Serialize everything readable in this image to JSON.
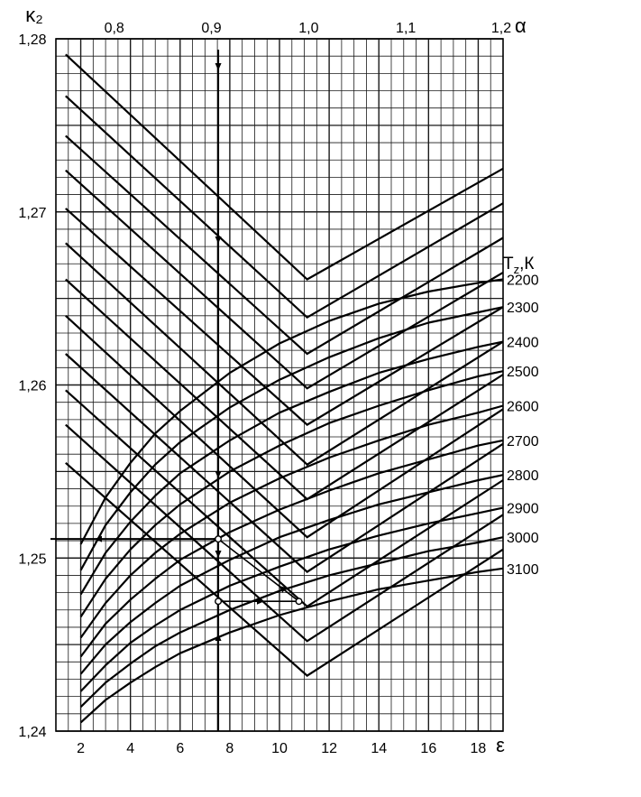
{
  "chart_data": {
    "type": "line",
    "axes": {
      "y": {
        "label": "κ₂",
        "range": [
          1.24,
          1.28
        ],
        "ticks": [
          "1,24",
          "1,25",
          "1,26",
          "1,27",
          "1,28"
        ],
        "tick_values": [
          1.24,
          1.25,
          1.26,
          1.27,
          1.28
        ]
      },
      "x_bottom": {
        "label": "ε",
        "range": [
          1,
          19
        ],
        "ticks": [
          "2",
          "4",
          "6",
          "8",
          "10",
          "12",
          "14",
          "16",
          "18"
        ],
        "tick_values": [
          2,
          4,
          6,
          8,
          10,
          12,
          14,
          16,
          18
        ]
      },
      "x_top": {
        "label": "α",
        "range": [
          0.74,
          1.2
        ],
        "ticks": [
          "0,8",
          "0,9",
          "1,0",
          "1,1",
          "1,2"
        ],
        "tick_values": [
          0.8,
          0.9,
          1.0,
          1.1,
          1.2
        ]
      }
    },
    "grid": true,
    "legend_title": "T",
    "legend_title_sub": "z",
    "legend_title_suffix": ",К",
    "alpha_series": [
      {
        "name": "2200",
        "points": [
          [
            0.75,
            1.2791
          ],
          [
            0.9985,
            1.2661
          ],
          [
            1.2,
            1.2725
          ]
        ]
      },
      {
        "name": "2300",
        "points": [
          [
            0.75,
            1.2767
          ],
          [
            0.9985,
            1.2639
          ],
          [
            1.2,
            1.2705
          ]
        ]
      },
      {
        "name": "2400",
        "points": [
          [
            0.75,
            1.2744
          ],
          [
            0.9985,
            1.2618
          ],
          [
            1.2,
            1.2685
          ]
        ]
      },
      {
        "name": "2500",
        "points": [
          [
            0.75,
            1.2724
          ],
          [
            0.9985,
            1.2598
          ],
          [
            1.2,
            1.2665
          ]
        ]
      },
      {
        "name": "2600",
        "points": [
          [
            0.75,
            1.2702
          ],
          [
            0.9985,
            1.2577
          ],
          [
            1.2,
            1.2645
          ]
        ]
      },
      {
        "name": "2700",
        "points": [
          [
            0.75,
            1.2682
          ],
          [
            0.9985,
            1.2554
          ],
          [
            1.2,
            1.2625
          ]
        ]
      },
      {
        "name": "2800",
        "points": [
          [
            0.75,
            1.2661
          ],
          [
            0.9985,
            1.2534
          ],
          [
            1.2,
            1.2606
          ]
        ]
      },
      {
        "name": "2900",
        "points": [
          [
            0.75,
            1.264
          ],
          [
            0.9985,
            1.2512
          ],
          [
            1.2,
            1.2586
          ]
        ]
      },
      {
        "name": "3000",
        "points": [
          [
            0.75,
            1.2618
          ],
          [
            0.9985,
            1.2492
          ],
          [
            1.2,
            1.2566
          ]
        ]
      },
      {
        "name": "3100",
        "points": [
          [
            0.75,
            1.2597
          ],
          [
            0.9985,
            1.2472
          ],
          [
            1.2,
            1.2545
          ]
        ]
      },
      {
        "name": "",
        "points": [
          [
            0.75,
            1.2577
          ],
          [
            0.9985,
            1.2452
          ],
          [
            1.2,
            1.2525
          ]
        ]
      },
      {
        "name": "",
        "points": [
          [
            0.75,
            1.2555
          ],
          [
            0.9985,
            1.2432
          ],
          [
            1.2,
            1.2505
          ]
        ]
      }
    ],
    "epsilon_series": [
      {
        "name": "2200",
        "points": [
          [
            2,
            1.2508
          ],
          [
            3,
            1.2535
          ],
          [
            4,
            1.2555
          ],
          [
            5,
            1.2572
          ],
          [
            6,
            1.2585
          ],
          [
            8,
            1.2607
          ],
          [
            10,
            1.2624
          ],
          [
            12,
            1.2637
          ],
          [
            14,
            1.2647
          ],
          [
            16,
            1.2654
          ],
          [
            18,
            1.2659
          ],
          [
            19,
            1.2661
          ]
        ]
      },
      {
        "name": "2300",
        "points": [
          [
            2,
            1.2493
          ],
          [
            3,
            1.2519
          ],
          [
            4,
            1.2538
          ],
          [
            5,
            1.2554
          ],
          [
            6,
            1.2567
          ],
          [
            8,
            1.2587
          ],
          [
            10,
            1.2603
          ],
          [
            12,
            1.2616
          ],
          [
            14,
            1.2627
          ],
          [
            16,
            1.2636
          ],
          [
            18,
            1.2642
          ],
          [
            19,
            1.2645
          ]
        ]
      },
      {
        "name": "2400",
        "points": [
          [
            2,
            1.2479
          ],
          [
            3,
            1.2503
          ],
          [
            4,
            1.2521
          ],
          [
            5,
            1.2536
          ],
          [
            6,
            1.2549
          ],
          [
            8,
            1.2568
          ],
          [
            10,
            1.2584
          ],
          [
            12,
            1.2596
          ],
          [
            14,
            1.2607
          ],
          [
            16,
            1.2615
          ],
          [
            18,
            1.2622
          ],
          [
            19,
            1.2625
          ]
        ]
      },
      {
        "name": "2500",
        "points": [
          [
            2,
            1.2466
          ],
          [
            3,
            1.2488
          ],
          [
            4,
            1.2505
          ],
          [
            5,
            1.2519
          ],
          [
            6,
            1.2531
          ],
          [
            8,
            1.255
          ],
          [
            10,
            1.2565
          ],
          [
            12,
            1.2578
          ],
          [
            14,
            1.2588
          ],
          [
            16,
            1.2597
          ],
          [
            18,
            1.2605
          ],
          [
            19,
            1.2608
          ]
        ]
      },
      {
        "name": "2600",
        "points": [
          [
            2,
            1.2454
          ],
          [
            3,
            1.2474
          ],
          [
            4,
            1.249
          ],
          [
            5,
            1.2503
          ],
          [
            6,
            1.2514
          ],
          [
            8,
            1.2532
          ],
          [
            10,
            1.2546
          ],
          [
            12,
            1.2558
          ],
          [
            14,
            1.2568
          ],
          [
            16,
            1.2577
          ],
          [
            18,
            1.2584
          ],
          [
            19,
            1.2588
          ]
        ]
      },
      {
        "name": "2700",
        "points": [
          [
            2,
            1.2443
          ],
          [
            3,
            1.2462
          ],
          [
            4,
            1.2476
          ],
          [
            5,
            1.2488
          ],
          [
            6,
            1.2499
          ],
          [
            8,
            1.2515
          ],
          [
            10,
            1.2528
          ],
          [
            12,
            1.2539
          ],
          [
            14,
            1.2549
          ],
          [
            16,
            1.2557
          ],
          [
            18,
            1.2565
          ],
          [
            19,
            1.2568
          ]
        ]
      },
      {
        "name": "2800",
        "points": [
          [
            2,
            1.2433
          ],
          [
            3,
            1.245
          ],
          [
            4,
            1.2463
          ],
          [
            5,
            1.2474
          ],
          [
            6,
            1.2484
          ],
          [
            8,
            1.2499
          ],
          [
            10,
            1.2512
          ],
          [
            12,
            1.2522
          ],
          [
            14,
            1.2531
          ],
          [
            16,
            1.2538
          ],
          [
            18,
            1.2545
          ],
          [
            19,
            1.2548
          ]
        ]
      },
      {
        "name": "2900",
        "points": [
          [
            2,
            1.2423
          ],
          [
            3,
            1.2438
          ],
          [
            4,
            1.2451
          ],
          [
            5,
            1.2461
          ],
          [
            6,
            1.247
          ],
          [
            8,
            1.2484
          ],
          [
            10,
            1.2495
          ],
          [
            12,
            1.2505
          ],
          [
            14,
            1.2513
          ],
          [
            16,
            1.252
          ],
          [
            18,
            1.2526
          ],
          [
            19,
            1.2529
          ]
        ]
      },
      {
        "name": "3000",
        "points": [
          [
            2,
            1.2414
          ],
          [
            3,
            1.2428
          ],
          [
            4,
            1.2439
          ],
          [
            5,
            1.2449
          ],
          [
            6,
            1.2457
          ],
          [
            8,
            1.247
          ],
          [
            10,
            1.2481
          ],
          [
            12,
            1.249
          ],
          [
            14,
            1.2497
          ],
          [
            16,
            1.2504
          ],
          [
            18,
            1.2509
          ],
          [
            19,
            1.2512
          ]
        ]
      },
      {
        "name": "3100",
        "points": [
          [
            2,
            1.2405
          ],
          [
            3,
            1.2418
          ],
          [
            4,
            1.2428
          ],
          [
            5,
            1.2437
          ],
          [
            6,
            1.2445
          ],
          [
            8,
            1.2457
          ],
          [
            10,
            1.2467
          ],
          [
            12,
            1.2475
          ],
          [
            14,
            1.2482
          ],
          [
            16,
            1.2487
          ],
          [
            18,
            1.2492
          ],
          [
            19,
            1.2494
          ]
        ]
      }
    ],
    "example_path": {
      "alpha_vertical": 0.907,
      "epsilon_vertical": 8.45,
      "points": [
        {
          "alpha": 0.907,
          "epsilon": 8.45,
          "k2": 1.2511
        },
        {
          "alpha": 0.99,
          "epsilon": 11.85,
          "k2": 1.2475
        },
        {
          "alpha": 0.907,
          "epsilon": 8.45,
          "k2": 1.2475
        }
      ],
      "result_k2": 1.2511
    },
    "colors": {
      "line": "#000000",
      "grid": "#1a1a1a",
      "marker_fill": "#ffffff"
    }
  }
}
